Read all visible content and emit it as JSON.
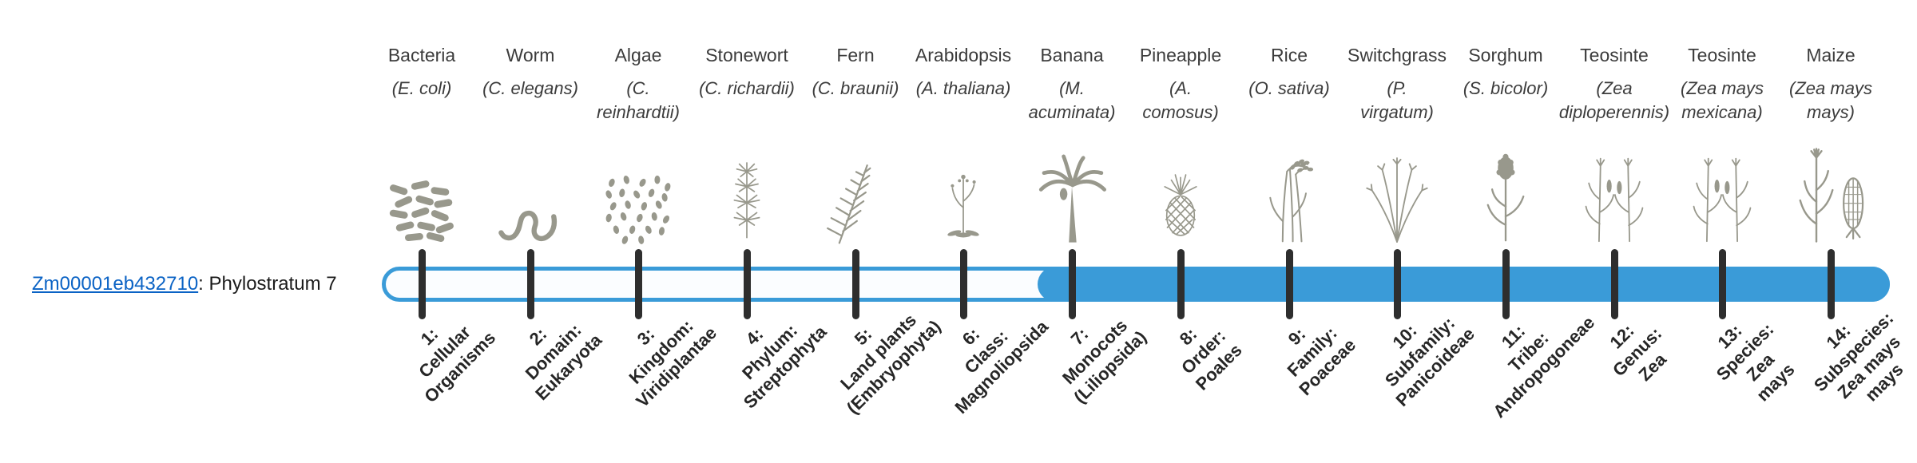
{
  "gene": {
    "id": "Zm00001eb432710",
    "suffix": ": Phylostratum 7",
    "phylostratum": 7
  },
  "bar": {
    "filled_from_index": 7,
    "total_strata": 14
  },
  "colors": {
    "bar_blue": "#3A9BD8",
    "track_bg": "#FBFDFF",
    "tick": "#2E2E2E",
    "link": "#0B63C5",
    "text": "#3C3C3C",
    "label_text": "#262626",
    "art": "#98988C"
  },
  "strata": [
    {
      "organism": "Bacteria",
      "sci_lines": [
        "(E. coli)"
      ],
      "icon": "bacteria-icon",
      "label_lines": [
        "1:",
        "Cellular",
        "Organisms"
      ]
    },
    {
      "organism": "Worm",
      "sci_lines": [
        "(C. elegans)"
      ],
      "icon": "worm-icon",
      "label_lines": [
        "2:",
        "Domain:",
        "Eukaryota"
      ]
    },
    {
      "organism": "Algae",
      "sci_lines": [
        "(C.",
        "reinhardtii)"
      ],
      "icon": "algae-icon",
      "label_lines": [
        "3:",
        "Kingdom:",
        "Viridiplantae"
      ]
    },
    {
      "organism": "Stonewort",
      "sci_lines": [
        "(C. richardii)"
      ],
      "icon": "stonewort-icon",
      "label_lines": [
        "4:",
        "Phylum:",
        "Streptophyta"
      ]
    },
    {
      "organism": "Fern",
      "sci_lines": [
        "(C. braunii)"
      ],
      "icon": "fern-icon",
      "label_lines": [
        "5:",
        "Land plants",
        "(Embryophyta)"
      ]
    },
    {
      "organism": "Arabidopsis",
      "sci_lines": [
        "(A. thaliana)"
      ],
      "icon": "arabidopsis-icon",
      "label_lines": [
        "6:",
        "Class:",
        "Magnoliopsida"
      ]
    },
    {
      "organism": "Banana",
      "sci_lines": [
        "(M.",
        "acuminata)"
      ],
      "icon": "banana-icon",
      "label_lines": [
        "7:",
        "Monocots",
        "(Liliopsida)"
      ]
    },
    {
      "organism": "Pineapple",
      "sci_lines": [
        "(A.",
        "comosus)"
      ],
      "icon": "pineapple-icon",
      "label_lines": [
        "8:",
        "Order:",
        "Poales"
      ]
    },
    {
      "organism": "Rice",
      "sci_lines": [
        "(O. sativa)"
      ],
      "icon": "rice-icon",
      "label_lines": [
        "9:",
        "Family:",
        "Poaceae"
      ]
    },
    {
      "organism": "Switchgrass",
      "sci_lines": [
        "(P.",
        "virgatum)"
      ],
      "icon": "switchgrass-icon",
      "label_lines": [
        "10:",
        "Subfamily:",
        "Panicoideae"
      ]
    },
    {
      "organism": "Sorghum",
      "sci_lines": [
        "(S. bicolor)"
      ],
      "icon": "sorghum-icon",
      "label_lines": [
        "11:",
        "Tribe:",
        "Andropogoneae"
      ]
    },
    {
      "organism": "Teosinte",
      "sci_lines": [
        "(Zea",
        "diploperennis)"
      ],
      "icon": "teosinte-icon",
      "label_lines": [
        "12:",
        "Genus:",
        "Zea"
      ]
    },
    {
      "organism": "Teosinte",
      "sci_lines": [
        "(Zea mays",
        "mexicana)"
      ],
      "icon": "teosinte-icon",
      "label_lines": [
        "13:",
        "Species:",
        "Zea",
        "mays"
      ]
    },
    {
      "organism": "Maize",
      "sci_lines": [
        "(Zea mays",
        "mays)"
      ],
      "icon": "maize-icon",
      "label_lines": [
        "14:",
        "Subspecies:",
        "Zea mays",
        "mays"
      ]
    }
  ]
}
